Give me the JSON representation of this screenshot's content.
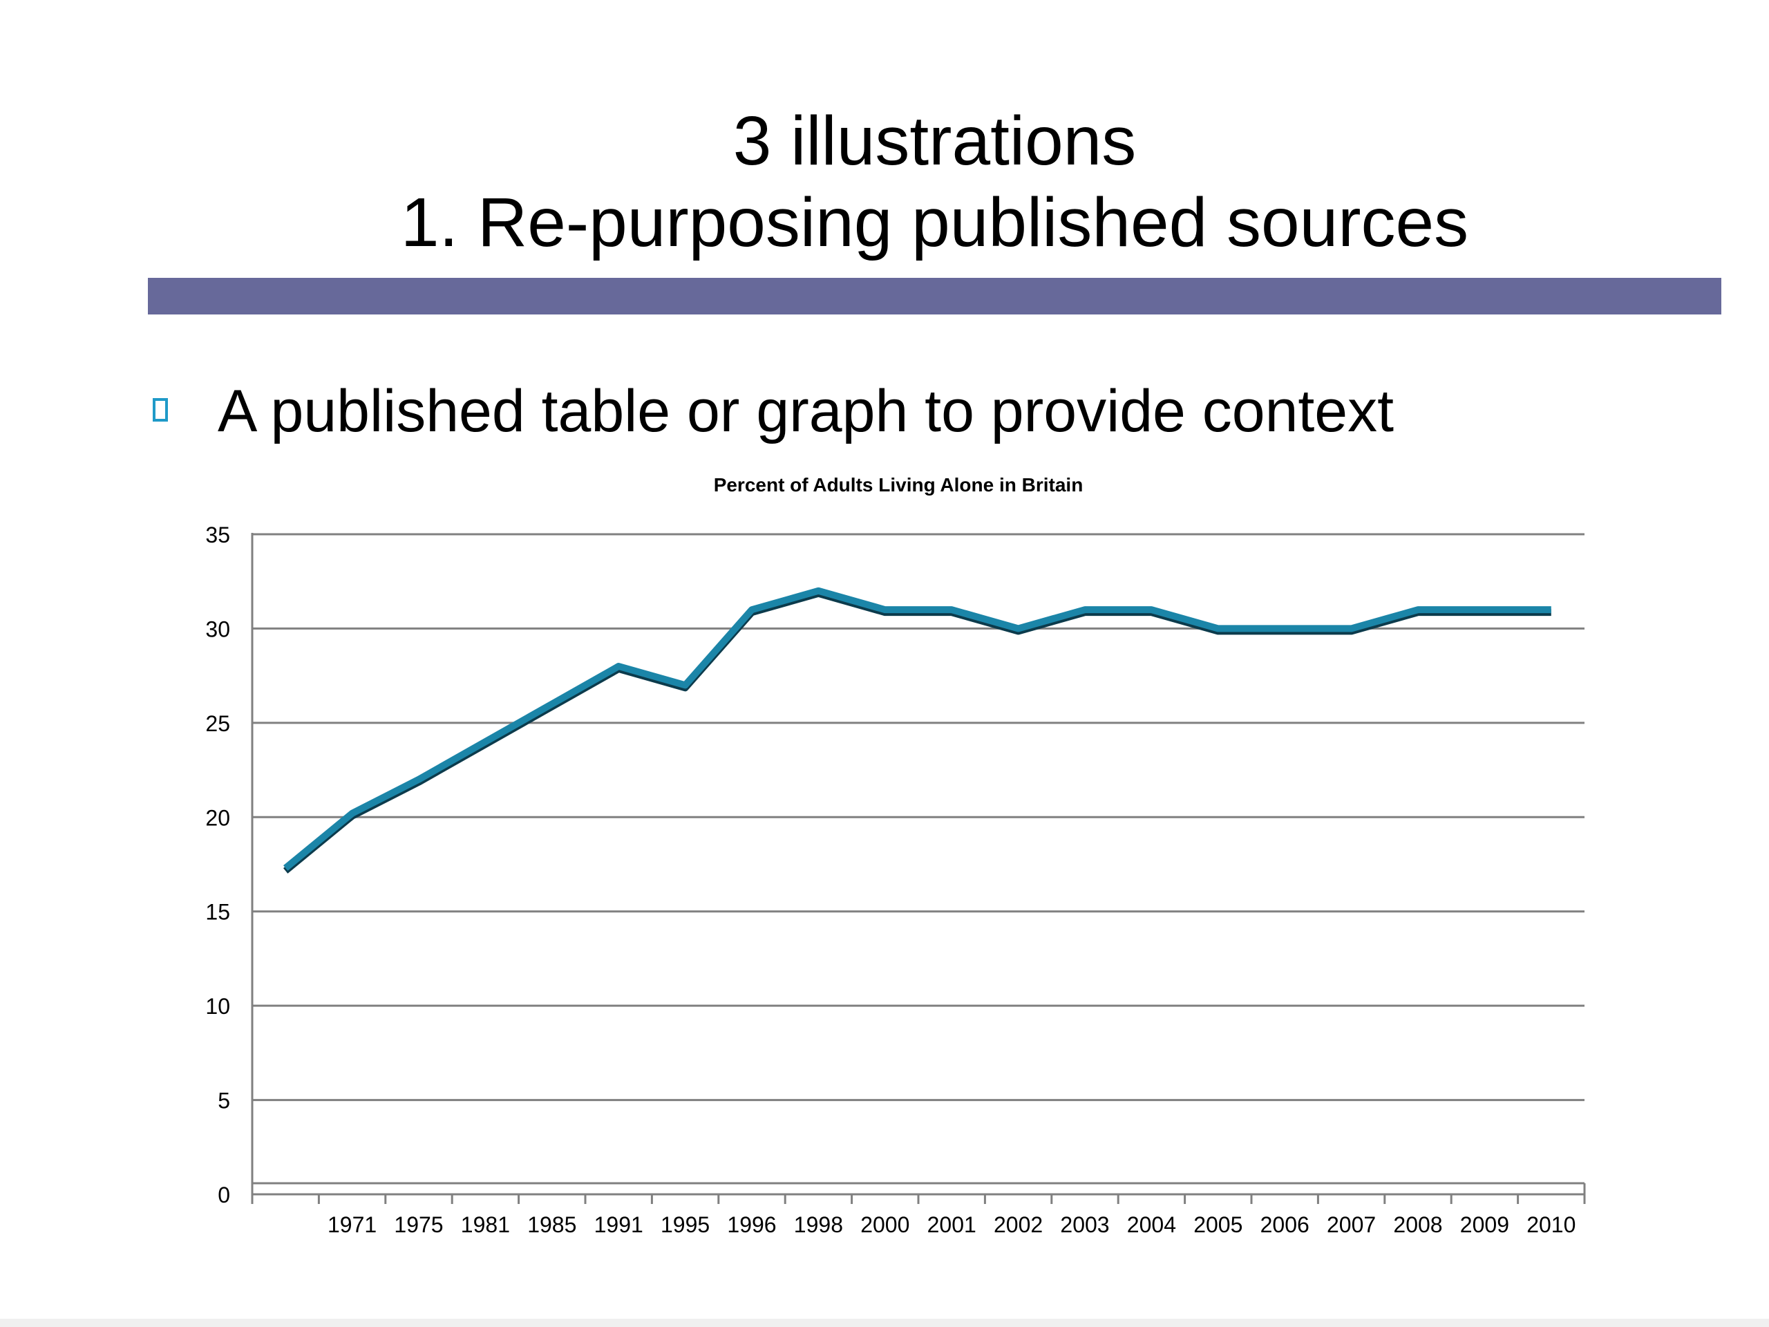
{
  "slide": {
    "title_line1": "3 illustrations",
    "title_line2": "1. Re-purposing published sources",
    "bar_color": "#67699a",
    "bullet": {
      "icon": "square-bullet-icon",
      "icon_color": "#1f9ac8",
      "text": "A published table or graph to provide context"
    }
  },
  "chart_data": {
    "type": "line",
    "title": "Percent of Adults Living Alone in Britain",
    "xlabel": "",
    "ylabel": "",
    "categories": [
      "",
      "1971",
      "1975",
      "1981",
      "1985",
      "1991",
      "1995",
      "1996",
      "1998",
      "2000",
      "2001",
      "2002",
      "2003",
      "2004",
      "2005",
      "2006",
      "2007",
      "2008",
      "2009",
      "2010"
    ],
    "series": [
      {
        "values": [
          17.3,
          20.2,
          22.0,
          24.0,
          26.0,
          28.0,
          27.0,
          31.0,
          32.0,
          31.0,
          31.0,
          30.0,
          31.0,
          31.0,
          30.0,
          30.0,
          30.0,
          31.0,
          31.0,
          31.0
        ],
        "color": "#1b85a8"
      }
    ],
    "ylim": [
      0,
      35
    ],
    "yticks": [
      0,
      5,
      10,
      15,
      20,
      25,
      30,
      35
    ],
    "grid": true,
    "legend": "none"
  }
}
